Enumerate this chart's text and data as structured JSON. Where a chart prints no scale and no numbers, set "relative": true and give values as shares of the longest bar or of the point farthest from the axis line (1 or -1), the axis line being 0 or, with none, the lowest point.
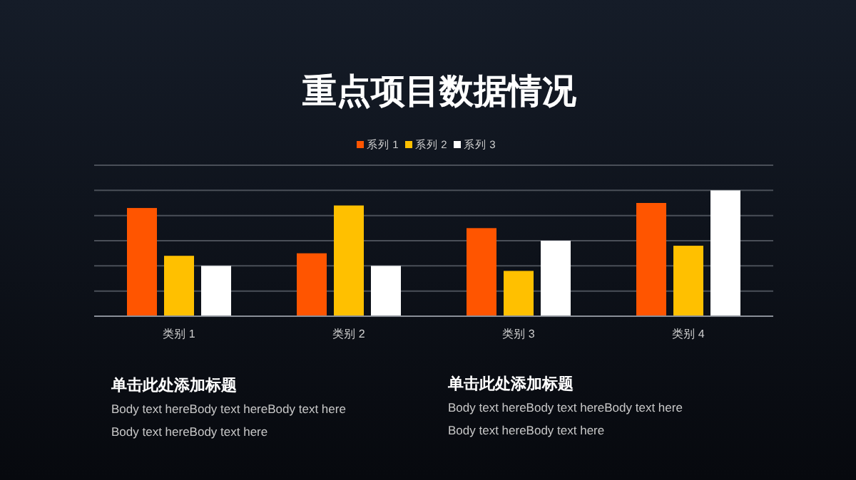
{
  "chart_data": {
    "type": "bar",
    "title": "重点项目数据情况",
    "relative": true,
    "grid": "y",
    "legend": "top",
    "categories": [
      "类别 1",
      "类别 2",
      "类别 3",
      "类别 4"
    ],
    "series": [
      {
        "name": "系列 1",
        "color": "#ff5500",
        "values": [
          0.86,
          0.5,
          0.7,
          0.9
        ]
      },
      {
        "name": "系列 2",
        "color": "#ffc000",
        "values": [
          0.48,
          0.88,
          0.36,
          0.56
        ]
      },
      {
        "name": "系列 3",
        "color": "#ffffff",
        "values": [
          0.4,
          0.4,
          0.6,
          1
        ]
      }
    ],
    "annotations": [
      "单击此处添加标题",
      "Body text hereBody text hereBody text here",
      "Body text hereBody text here",
      "单击此处添加标题",
      "Body text hereBody text hereBody text here",
      "Body text hereBody text here"
    ]
  }
}
